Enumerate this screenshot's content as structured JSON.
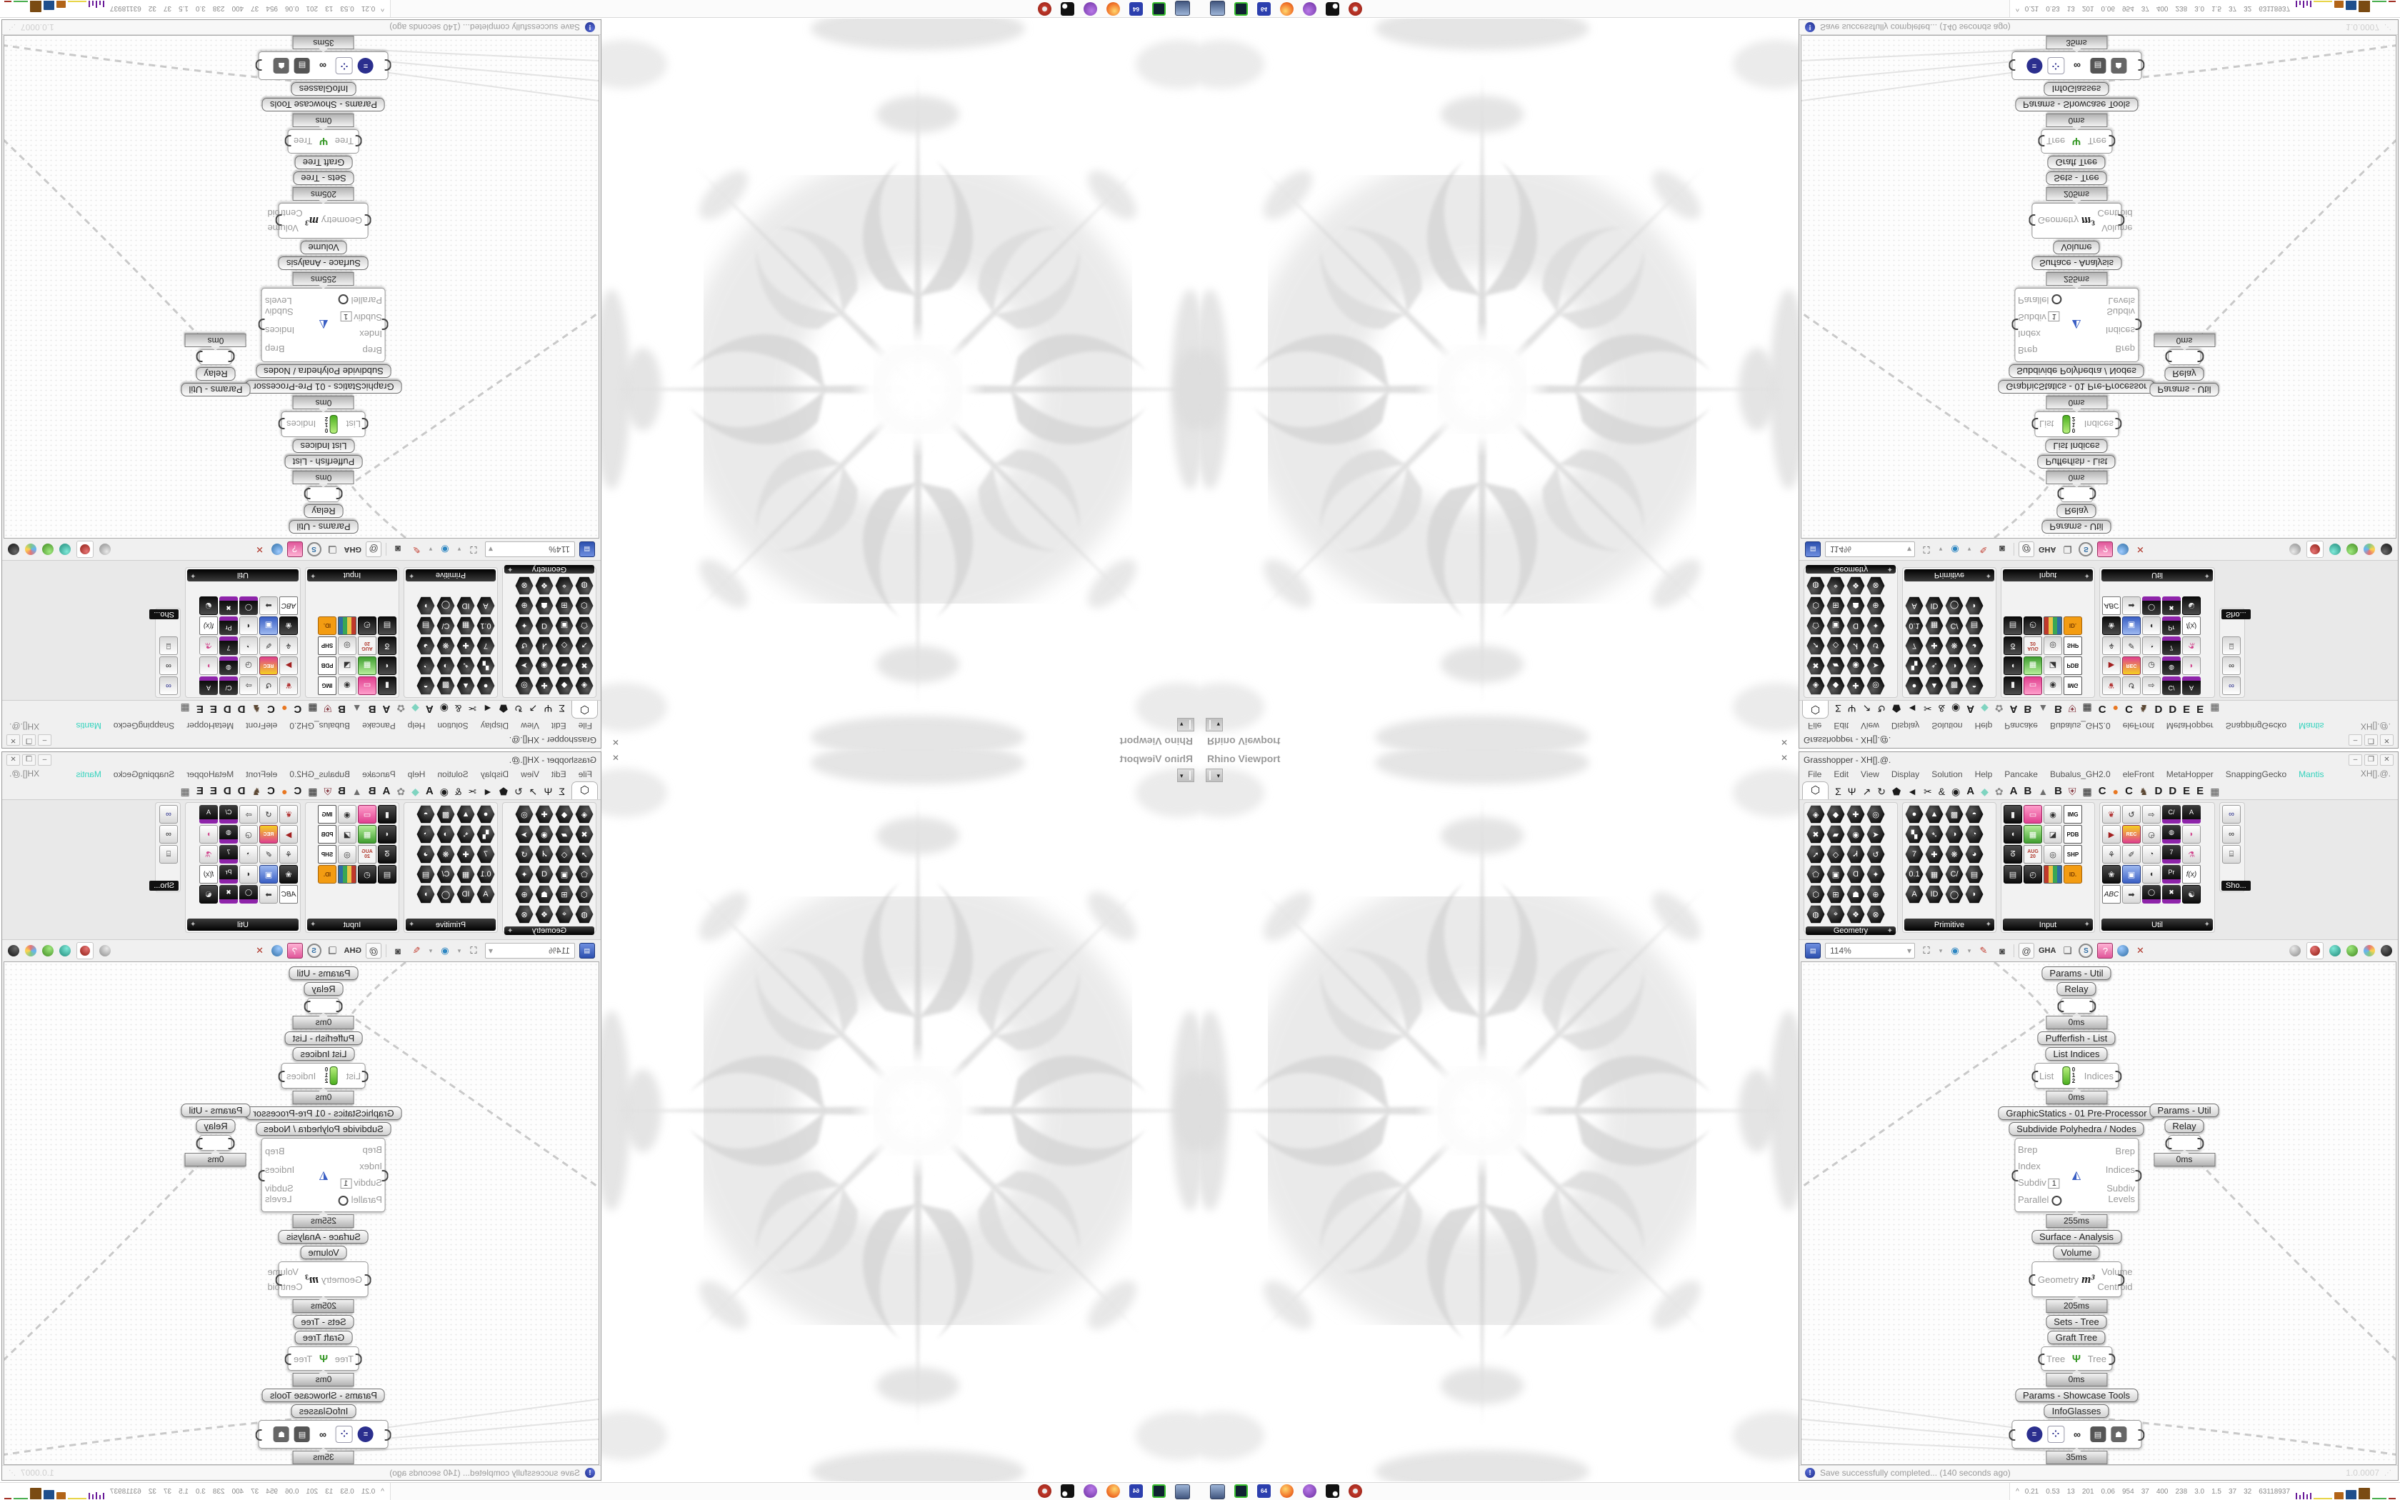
{
  "app": {
    "title": "Grasshopper - XH[].@.",
    "window_buttons": {
      "minimize": "–",
      "maximize": "❐",
      "close": "✕"
    }
  },
  "rhino": {
    "viewport_label": "Rhino Viewport",
    "close_glyph": "✕",
    "dropdown_glyph": "▾"
  },
  "menu": {
    "items": [
      {
        "g": "File"
      },
      {
        "g": "Edit"
      },
      {
        "g": "View"
      },
      {
        "g": "Display"
      },
      {
        "g": "Solution"
      },
      {
        "g": "Help"
      },
      {
        "g": "Pancake"
      },
      {
        "g": "Bubalus_GH2.0"
      },
      {
        "g": "eleFront"
      },
      {
        "g": "MetaHopper"
      },
      {
        "g": "SnappingGecko"
      },
      {
        "g": "Mantis",
        "k": "accent"
      }
    ],
    "right_label": "XH[].@."
  },
  "tabstrip": {
    "icons": [
      {
        "g": "⬡",
        "k": "first"
      },
      {
        "g": "Σ"
      },
      {
        "g": "Ψ"
      },
      {
        "g": "↗"
      },
      {
        "g": "↻"
      },
      {
        "g": "⬟"
      },
      {
        "g": "◄"
      },
      {
        "g": "✂"
      },
      {
        "g": "&"
      },
      {
        "g": "◉"
      },
      {
        "g": "A",
        "k": "ltr"
      },
      {
        "g": "◆",
        "fg": "#7fd4c0"
      },
      {
        "g": "✿",
        "fg": "#8a8a8a"
      },
      {
        "g": "A",
        "k": "ltr"
      },
      {
        "g": "B",
        "k": "ltr"
      },
      {
        "g": "▲",
        "fg": "#6d6d6d"
      },
      {
        "g": "B",
        "k": "ltr"
      },
      {
        "g": "⛨",
        "fg": "#83343c"
      },
      {
        "g": "▦"
      },
      {
        "g": "C",
        "k": "ltr"
      },
      {
        "g": "●",
        "fg": "#e87722"
      },
      {
        "g": "C",
        "k": "ltr"
      },
      {
        "g": "♞",
        "fg": "#5a4632"
      },
      {
        "g": "D",
        "k": "ltr"
      },
      {
        "g": "D",
        "k": "ltr"
      },
      {
        "g": "E",
        "k": "ltr"
      },
      {
        "g": "E",
        "k": "ltr"
      },
      {
        "g": "▦",
        "fg": "#555555"
      }
    ]
  },
  "panels": [
    {
      "label": "Geometry",
      "add_glyph": "✦",
      "width": 132,
      "icons": [
        {
          "g": "◈",
          "k": "hx"
        },
        {
          "g": "◆",
          "k": "hx"
        },
        {
          "g": "✚",
          "k": "hx"
        },
        {
          "g": "◎",
          "k": "hx"
        },
        {
          "g": "✖",
          "k": "hx"
        },
        {
          "g": "▰",
          "k": "hx"
        },
        {
          "g": "◉",
          "k": "hx"
        },
        {
          "g": "➤",
          "k": "hx"
        },
        {
          "g": "➚",
          "k": "hx"
        },
        {
          "g": "◇",
          "k": "hx"
        },
        {
          "g": "Ꮧ",
          "k": "hx"
        },
        {
          "g": "↺",
          "k": "hx"
        },
        {
          "g": "⬠",
          "k": "hx"
        },
        {
          "g": "▣",
          "k": "hx"
        },
        {
          "g": "Ɑ",
          "k": "hx"
        },
        {
          "g": "✦",
          "k": "hx"
        },
        {
          "g": "⬡",
          "k": "hx"
        },
        {
          "g": "⊞",
          "k": "hx"
        },
        {
          "g": "☗",
          "k": "hx"
        },
        {
          "g": "⊕",
          "k": "hx"
        },
        {
          "g": "◍",
          "k": "hx"
        },
        {
          "g": "⌖",
          "k": "hx"
        },
        {
          "g": "❖",
          "k": "hx"
        },
        {
          "g": "⊗",
          "k": "hx"
        }
      ]
    },
    {
      "label": "Primitive",
      "add_glyph": "✦",
      "width": 132,
      "icons": [
        {
          "g": "●",
          "k": "hx"
        },
        {
          "g": "▲",
          "k": "hx"
        },
        {
          "g": "▩",
          "k": "hx"
        },
        {
          "g": "◓",
          "k": "hx"
        },
        {
          "g": "▚",
          "k": "hx"
        },
        {
          "g": "➴",
          "k": "hx"
        },
        {
          "g": "◑",
          "k": "hx"
        },
        {
          "g": "◔",
          "k": "hx"
        },
        {
          "g": "7",
          "k": "hx"
        },
        {
          "g": "✚",
          "k": "hx"
        },
        {
          "g": "❋",
          "k": "hx"
        },
        {
          "g": "◕",
          "k": "hx"
        },
        {
          "g": "0.1",
          "k": "hx"
        },
        {
          "g": "▦",
          "k": "hx"
        },
        {
          "g": "C/",
          "k": "hx"
        },
        {
          "g": "▤",
          "k": "hx"
        },
        {
          "g": "A",
          "k": "hx"
        },
        {
          "g": "ID",
          "k": "hx"
        },
        {
          "g": "◯",
          "k": "hx"
        },
        {
          "g": "◗",
          "k": "hx"
        }
      ]
    },
    {
      "label": "Input",
      "add_glyph": "✦",
      "width": 132,
      "icons": [
        {
          "g": "▮",
          "k": "dk"
        },
        {
          "g": "▭",
          "k": "pk"
        },
        {
          "g": "◉",
          "k": "sq"
        },
        {
          "g": "IMG",
          "k": "chip"
        },
        {
          "g": "◖",
          "k": "dk"
        },
        {
          "g": "▦",
          "k": "gr"
        },
        {
          "g": "◪",
          "k": "sq"
        },
        {
          "g": "PDB",
          "k": "chip"
        },
        {
          "g": "ᘔ",
          "k": "dk"
        },
        {
          "g": "AUG 20",
          "k": "cal"
        },
        {
          "g": "◎",
          "k": "sq"
        },
        {
          "g": "SHP",
          "k": "chip"
        },
        {
          "g": "▤",
          "k": "dk"
        },
        {
          "g": "◴",
          "k": "dk"
        },
        {
          "g": "▌",
          "k": "stripes"
        },
        {
          "g": "ID.",
          "k": "tag"
        }
      ]
    },
    {
      "label": "Util",
      "add_glyph": "✦",
      "width": 162,
      "icons": [
        {
          "g": "❦",
          "k": "sq",
          "fg": "#b03030"
        },
        {
          "g": "↺",
          "k": "sq"
        },
        {
          "g": "⇨",
          "k": "sq"
        },
        {
          "g": "C/",
          "k": "pu"
        },
        {
          "g": "A",
          "k": "pu"
        },
        {
          "g": "▶",
          "k": "sq",
          "fg": "#a22020"
        },
        {
          "g": "REC",
          "k": "rec"
        },
        {
          "g": "◶",
          "k": "sq"
        },
        {
          "g": "◍",
          "k": "pu"
        },
        {
          "g": "◗",
          "k": "sq",
          "fg": "#d0488e"
        },
        {
          "g": "⚘",
          "k": "sq"
        },
        {
          "g": "✐",
          "k": "sq"
        },
        {
          "g": "◔",
          "k": "sq"
        },
        {
          "g": "7",
          "k": "pu"
        },
        {
          "g": "⚗",
          "k": "sq",
          "fg": "#d0488e"
        },
        {
          "g": "❀",
          "k": "dk"
        },
        {
          "g": "▣",
          "k": "blue"
        },
        {
          "g": "◖",
          "k": "sq"
        },
        {
          "g": "Pr",
          "k": "pu"
        },
        {
          "g": "f(x)",
          "k": "fx"
        },
        {
          "g": "ABC",
          "k": "fx"
        },
        {
          "g": "➡",
          "k": "sq"
        },
        {
          "g": "◯",
          "k": "pu"
        },
        {
          "g": "✖",
          "k": "pu"
        },
        {
          "g": "☯",
          "k": "dk"
        }
      ]
    }
  ],
  "showcase": {
    "label": "Sho...",
    "icons": [
      {
        "g": "∞",
        "k": "sq",
        "fg": "#2b2f8e"
      },
      {
        "g": "∞",
        "k": "sq",
        "fg": "#222222"
      },
      {
        "g": "⌸",
        "k": "sq",
        "fg": "#222222"
      }
    ]
  },
  "toolbar": {
    "left_icons": [
      {
        "k": "floppy",
        "g": "▤"
      },
      {
        "k": "combo",
        "g": "114%"
      },
      {
        "k": "fit",
        "g": "⛶"
      },
      {
        "k": "dd",
        "g": "▾"
      },
      {
        "k": "eye",
        "g": "◉"
      },
      {
        "k": "dd",
        "g": "▾"
      },
      {
        "k": "pen",
        "g": "✎"
      },
      {
        "k": "cam",
        "g": "◙"
      },
      {
        "k": "sep",
        "g": ""
      },
      {
        "k": "at",
        "g": "@"
      },
      {
        "k": "gha",
        "g": "GHA"
      },
      {
        "k": "winic",
        "g": "❏"
      },
      {
        "k": "smag",
        "g": "S"
      },
      {
        "k": "pbox",
        "g": "?"
      },
      {
        "k": "ball",
        "g": "",
        "bg": "radial-gradient(circle at 35% 30%,#9ecbff,#2e6da4)"
      },
      {
        "k": "xarr",
        "g": "✕"
      }
    ],
    "preview_icons": [
      {
        "k": "ball",
        "bg": "radial-gradient(circle at 35% 30%,#e8e8e8,#8a8a8a)"
      },
      {
        "k": "ballbox"
      },
      {
        "k": "ball",
        "bg": "radial-gradient(circle at 35% 30%,#7ee8d8,#1f8a78)"
      },
      {
        "k": "ball",
        "bg": "radial-gradient(circle at 35% 30%,#9fe87e,#3f8a1f)"
      },
      {
        "k": "ball",
        "bg": "conic-gradient(#e57373,#ffd54f,#81c784,#64b5f6,#e57373)"
      },
      {
        "k": "ball",
        "bg": "radial-gradient(circle at 35% 30%,#666,#111)"
      }
    ]
  },
  "canvas": {
    "chain": {
      "g1": "Params - Util",
      "n1": "Relay",
      "t1": "0ms",
      "g2": "Pufferfish - List",
      "n2": "List Indices",
      "t2": "0ms",
      "g3": "GraphicStatics - 01 Pre-Processor",
      "n3": "Subdivide Polyhedra / Nodes",
      "t3": "255ms",
      "g4": "Surface - Analysis",
      "n4": "Volume",
      "t4": "205ms",
      "g5": "Sets - Tree",
      "n5": "Graft Tree",
      "t5": "0ms",
      "g6": "Params - Showcase Tools",
      "n6": "InfoGlasses",
      "t6": "35ms"
    },
    "list_node": {
      "input": "List",
      "output": "Indices",
      "d0": "0",
      "d1": "1",
      "d2": "2"
    },
    "subdivide": {
      "in1": "Brep",
      "in2": "Index",
      "in3": "Subdiv",
      "in3_value": "1",
      "in4": "Parallel",
      "out1": "Brep",
      "out2": "Indices",
      "out3": "Subdiv Levels",
      "icon": "◭"
    },
    "volume": {
      "input": "Geometry",
      "icon": "m³",
      "out1": "Volume",
      "out2": "Centroid"
    },
    "graft": {
      "input": "Tree",
      "icon": "Ψ",
      "output": "Tree"
    },
    "branch": {
      "group": "Params - Util",
      "node": "Relay",
      "time": "0ms"
    }
  },
  "statusbar": {
    "icon": "!",
    "message": "Save successfully completed... (140 seconds ago)",
    "version": "1.0.0007",
    "grip": "⋰"
  },
  "taskbar": {
    "icons": [
      {
        "k": "tb-monitor"
      },
      {
        "k": "tb-green"
      },
      {
        "k": "tb-floppy",
        "g": "64"
      },
      {
        "k": "tb-fox"
      },
      {
        "k": "tb-purple"
      },
      {
        "k": "tb-cat"
      },
      {
        "k": "tb-red"
      }
    ],
    "monitor": {
      "chevron": "^",
      "values": [
        "0.21",
        "0.53",
        "13",
        "201",
        "0.06",
        "954",
        "37",
        "400",
        "238",
        "3.0",
        "1.5",
        "37",
        "32",
        "63118937"
      ]
    }
  }
}
